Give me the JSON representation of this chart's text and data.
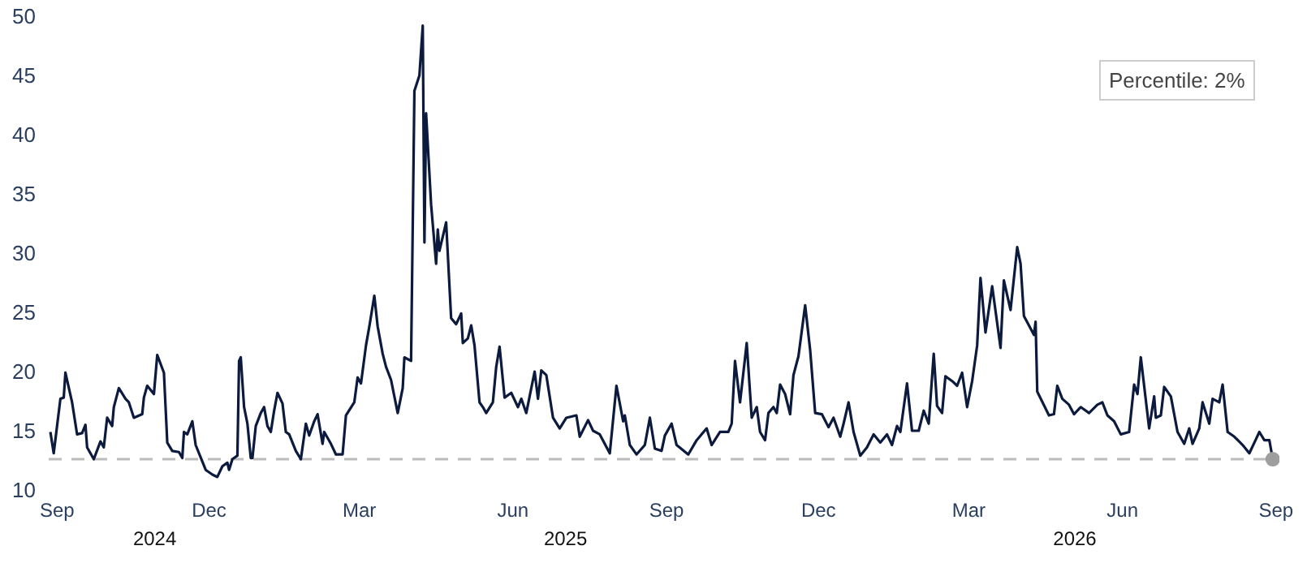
{
  "chart_data": {
    "type": "line",
    "x": [
      "2024-08-28",
      "2024-08-30",
      "2024-09-03",
      "2024-09-05",
      "2024-09-06",
      "2024-09-10",
      "2024-09-13",
      "2024-09-16",
      "2024-09-18",
      "2024-09-19",
      "2024-09-23",
      "2024-09-27",
      "2024-09-29",
      "2024-10-01",
      "2024-10-04",
      "2024-10-05",
      "2024-10-08",
      "2024-10-12",
      "2024-10-14",
      "2024-10-17",
      "2024-10-22",
      "2024-10-23",
      "2024-10-25",
      "2024-10-29",
      "2024-10-31",
      "2024-11-04",
      "2024-11-06",
      "2024-11-09",
      "2024-11-13",
      "2024-11-15",
      "2024-11-16",
      "2024-11-18",
      "2024-11-21",
      "2024-11-23",
      "2024-11-27",
      "2024-11-29",
      "2024-12-03",
      "2024-12-06",
      "2024-12-09",
      "2024-12-12",
      "2024-12-13",
      "2024-12-15",
      "2024-12-18",
      "2024-12-19",
      "2024-12-20",
      "2024-12-22",
      "2024-12-24",
      "2024-12-26",
      "2024-12-27",
      "2024-12-29",
      "2025-01-01",
      "2025-01-03",
      "2025-01-05",
      "2025-01-07",
      "2025-01-09",
      "2025-01-11",
      "2025-01-14",
      "2025-01-16",
      "2025-01-18",
      "2025-01-22",
      "2025-01-25",
      "2025-01-28",
      "2025-01-30",
      "2025-02-02",
      "2025-02-04",
      "2025-02-07",
      "2025-02-08",
      "2025-02-12",
      "2025-02-15",
      "2025-02-19",
      "2025-02-21",
      "2025-02-26",
      "2025-02-28",
      "2025-03-02",
      "2025-03-05",
      "2025-03-07",
      "2025-03-10",
      "2025-03-12",
      "2025-03-15",
      "2025-03-17",
      "2025-03-20",
      "2025-03-24",
      "2025-03-27",
      "2025-03-28",
      "2025-04-01",
      "2025-04-03",
      "2025-04-06",
      "2025-04-08",
      "2025-04-09",
      "2025-04-10",
      "2025-04-13",
      "2025-04-16",
      "2025-04-17",
      "2025-04-18",
      "2025-04-22",
      "2025-04-25",
      "2025-04-28",
      "2025-05-01",
      "2025-05-02",
      "2025-05-05",
      "2025-05-07",
      "2025-05-09",
      "2025-05-12",
      "2025-05-14",
      "2025-05-16",
      "2025-05-20",
      "2025-05-22",
      "2025-05-24",
      "2025-05-27",
      "2025-05-31",
      "2025-06-04",
      "2025-06-06",
      "2025-06-09",
      "2025-06-14",
      "2025-06-16",
      "2025-06-18",
      "2025-06-21",
      "2025-06-25",
      "2025-06-29",
      "2025-07-03",
      "2025-07-09",
      "2025-07-11",
      "2025-07-16",
      "2025-07-19",
      "2025-07-23",
      "2025-07-29",
      "2025-08-02",
      "2025-08-06",
      "2025-08-07",
      "2025-08-10",
      "2025-08-14",
      "2025-08-19",
      "2025-08-22",
      "2025-08-25",
      "2025-08-29",
      "2025-08-31",
      "2025-09-04",
      "2025-09-07",
      "2025-09-14",
      "2025-09-19",
      "2025-09-25",
      "2025-09-28",
      "2025-10-03",
      "2025-10-08",
      "2025-10-10",
      "2025-10-12",
      "2025-10-15",
      "2025-10-19",
      "2025-10-22",
      "2025-10-25",
      "2025-10-27",
      "2025-10-30",
      "2025-11-01",
      "2025-11-04",
      "2025-11-06",
      "2025-11-08",
      "2025-11-11",
      "2025-11-14",
      "2025-11-16",
      "2025-11-19",
      "2025-11-23",
      "2025-11-26",
      "2025-11-29",
      "2025-12-03",
      "2025-12-07",
      "2025-12-10",
      "2025-12-14",
      "2025-12-16",
      "2025-12-19",
      "2025-12-22",
      "2025-12-26",
      "2025-12-30",
      "2026-01-03",
      "2026-01-07",
      "2026-01-11",
      "2026-01-14",
      "2026-01-17",
      "2026-01-19",
      "2026-01-23",
      "2026-01-26",
      "2026-01-30",
      "2026-02-02",
      "2026-02-05",
      "2026-02-08",
      "2026-02-10",
      "2026-02-13",
      "2026-02-15",
      "2026-02-19",
      "2026-02-22",
      "2026-02-25",
      "2026-02-28",
      "2026-03-03",
      "2026-03-06",
      "2026-03-08",
      "2026-03-11",
      "2026-03-15",
      "2026-03-20",
      "2026-03-22",
      "2026-03-26",
      "2026-03-30",
      "2026-04-01",
      "2026-04-03",
      "2026-04-09",
      "2026-04-10",
      "2026-04-11",
      "2026-04-18",
      "2026-04-21",
      "2026-04-23",
      "2026-04-26",
      "2026-04-30",
      "2026-05-03",
      "2026-05-07",
      "2026-05-12",
      "2026-05-17",
      "2026-05-20",
      "2026-05-23",
      "2026-05-27",
      "2026-05-31",
      "2026-06-05",
      "2026-06-08",
      "2026-06-10",
      "2026-06-12",
      "2026-06-17",
      "2026-06-20",
      "2026-06-21",
      "2026-06-24",
      "2026-06-26",
      "2026-06-30",
      "2026-07-04",
      "2026-07-08",
      "2026-07-11",
      "2026-07-13",
      "2026-07-17",
      "2026-07-19",
      "2026-07-23",
      "2026-07-25",
      "2026-07-29",
      "2026-07-31",
      "2026-08-03",
      "2026-08-07",
      "2026-08-12",
      "2026-08-16",
      "2026-08-19",
      "2026-08-22",
      "2026-08-25",
      "2026-08-28",
      "2026-08-30"
    ],
    "series": [
      {
        "color": "#0b1a3d",
        "values": [
          14.9,
          13.1,
          17.7,
          17.8,
          19.9,
          17.4,
          14.7,
          14.8,
          15.5,
          13.6,
          12.6,
          14.1,
          13.6,
          16.1,
          15.4,
          17.0,
          18.6,
          17.7,
          17.4,
          16.1,
          16.4,
          17.8,
          18.8,
          18.1,
          21.4,
          19.9,
          14.0,
          13.3,
          13.2,
          12.7,
          14.9,
          14.7,
          15.8,
          13.8,
          12.4,
          11.7,
          11.3,
          11.1,
          12.0,
          12.3,
          11.7,
          12.6,
          12.9,
          20.9,
          21.2,
          17.0,
          15.6,
          12.7,
          12.7,
          15.4,
          16.5,
          17.0,
          15.4,
          14.9,
          16.7,
          18.2,
          17.3,
          14.9,
          14.7,
          13.3,
          12.6,
          15.6,
          14.6,
          15.8,
          16.4,
          13.9,
          14.9,
          13.9,
          13.0,
          13.0,
          16.3,
          17.4,
          19.5,
          19.0,
          22.2,
          23.8,
          26.4,
          23.8,
          21.5,
          20.4,
          19.3,
          16.5,
          18.6,
          21.2,
          20.9,
          43.7,
          45.0,
          49.2,
          30.9,
          41.8,
          34.1,
          29.1,
          32.0,
          30.2,
          32.6,
          24.5,
          24.0,
          24.9,
          22.4,
          22.8,
          23.9,
          22.2,
          17.4,
          17.0,
          16.5,
          17.4,
          20.4,
          22.1,
          17.8,
          18.2,
          17.0,
          17.7,
          16.5,
          20.0,
          17.7,
          20.1,
          19.7,
          16.1,
          15.2,
          16.1,
          16.3,
          14.5,
          15.9,
          15.0,
          14.7,
          13.1,
          18.8,
          15.8,
          16.3,
          13.8,
          13.0,
          13.8,
          16.1,
          13.5,
          13.3,
          14.6,
          15.6,
          13.8,
          13.0,
          14.2,
          15.2,
          13.8,
          14.9,
          14.9,
          15.6,
          20.9,
          17.4,
          22.4,
          16.1,
          17.0,
          14.9,
          14.2,
          16.5,
          17.0,
          16.5,
          18.9,
          18.1,
          16.4,
          19.7,
          21.3,
          25.6,
          21.8,
          16.5,
          16.4,
          15.3,
          16.1,
          14.5,
          15.6,
          17.4,
          14.9,
          12.9,
          13.6,
          14.7,
          14.0,
          14.7,
          13.8,
          15.4,
          14.9,
          19.0,
          15.0,
          15.0,
          16.7,
          15.6,
          21.5,
          17.1,
          16.5,
          19.6,
          19.2,
          18.8,
          19.9,
          17.0,
          19.2,
          22.2,
          27.9,
          23.3,
          27.2,
          22.0,
          27.7,
          25.2,
          30.5,
          29.1,
          24.7,
          23.1,
          24.2,
          18.3,
          16.3,
          16.4,
          18.8,
          17.7,
          17.2,
          16.4,
          17.0,
          16.5,
          17.2,
          17.4,
          16.3,
          15.8,
          14.7,
          14.9,
          18.9,
          18.1,
          21.2,
          15.2,
          17.9,
          16.1,
          16.3,
          18.7,
          17.9,
          14.9,
          13.9,
          15.2,
          13.9,
          15.2,
          17.4,
          15.6,
          17.7,
          17.4,
          18.9,
          14.9,
          14.5,
          13.8,
          13.1,
          14.0,
          14.9,
          14.2,
          14.2,
          12.6
        ]
      },
      {
        "type": "scatter",
        "x": [
          "2026-08-30"
        ],
        "color": "#9e9e9e",
        "values": [
          12.6
        ]
      }
    ],
    "xlim": [
      "2024-08-27",
      "2026-09-03"
    ],
    "xticks": [
      {
        "value": "2024-09-01",
        "label": "Sep"
      },
      {
        "value": "2024-12-01",
        "label": "Dec"
      },
      {
        "value": "2025-03-01",
        "label": "Mar"
      },
      {
        "value": "2025-06-01",
        "label": "Jun"
      },
      {
        "value": "2025-09-01",
        "label": "Sep"
      },
      {
        "value": "2025-12-01",
        "label": "Dec"
      },
      {
        "value": "2026-03-01",
        "label": "Mar"
      },
      {
        "value": "2026-06-01",
        "label": "Jun"
      },
      {
        "value": "2026-09-01",
        "label": "Sep"
      }
    ],
    "ylim": [
      10,
      50
    ],
    "yticks": [
      10,
      15,
      20,
      25,
      30,
      35,
      40,
      45,
      50
    ],
    "ref_lines": [
      {
        "axis": "y",
        "value": 12.6,
        "color": "#bbbbbb",
        "line_style": "dashed"
      }
    ],
    "annotations": [
      "Percentile: 2%",
      "2024",
      "2025",
      "2026"
    ]
  }
}
